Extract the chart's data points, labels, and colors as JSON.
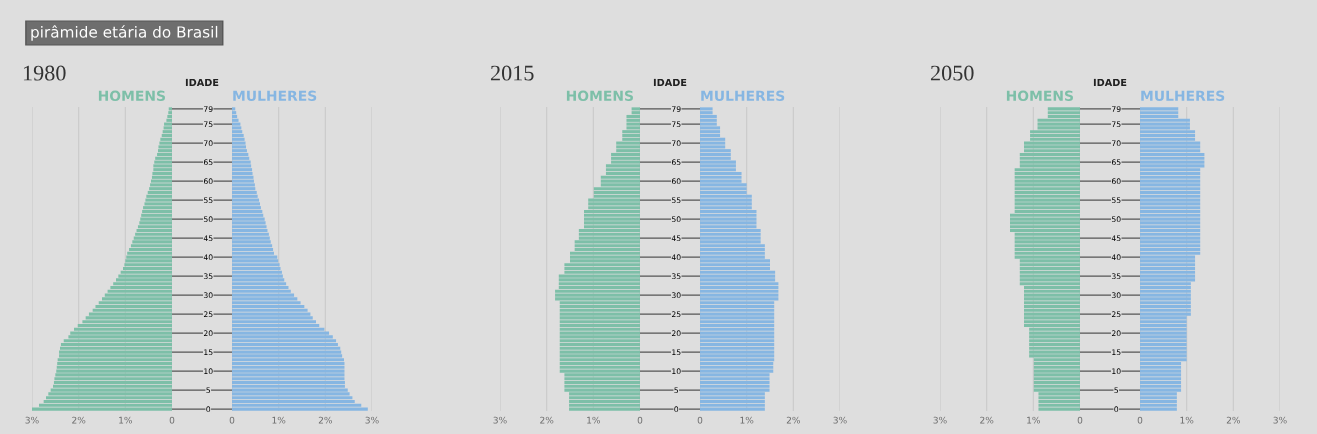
{
  "chart_data": [
    {
      "type": "bar",
      "orientation": "horizontal",
      "title": "1980",
      "subtitle": "HOMENS",
      "annotations": [
        "pirâmide etária do Brasil"
      ],
      "tick_labels": "x",
      "grid": "x",
      "categories": [
        "79",
        null,
        null,
        null,
        "75",
        null,
        null,
        null,
        null,
        "70",
        null,
        null,
        null,
        null,
        "65",
        null,
        null,
        null,
        null,
        "60",
        null,
        null,
        null,
        null,
        "55",
        null,
        null,
        null,
        null,
        "50",
        null,
        null,
        null,
        null,
        "45",
        null,
        null,
        null,
        null,
        "40",
        null,
        null,
        null,
        null,
        "35",
        null,
        null,
        null,
        null,
        "30",
        null,
        null,
        null,
        null,
        "25",
        null,
        null,
        null,
        null,
        "20",
        null,
        null,
        null,
        null,
        "15",
        null,
        null,
        null,
        null,
        "10",
        null,
        null,
        null,
        null,
        "5",
        null,
        null,
        null,
        null,
        "0"
      ],
      "xlim": [
        3,
        0
      ],
      "xticks": [
        {
          "value": 3,
          "label": "3%"
        },
        {
          "value": 2,
          "label": "2%"
        },
        {
          "value": 1,
          "label": "1%"
        },
        0
      ],
      "series": [
        {
          "color": "#7dbfa8",
          "values": [
            0.07,
            0.08,
            0.1,
            0.12,
            0.17,
            0.18,
            0.2,
            0.22,
            0.25,
            0.27,
            0.29,
            0.3,
            0.32,
            0.36,
            0.38,
            0.4,
            0.4,
            0.42,
            0.43,
            0.45,
            0.47,
            0.49,
            0.52,
            0.55,
            0.57,
            0.59,
            0.62,
            0.64,
            0.66,
            0.68,
            0.7,
            0.73,
            0.76,
            0.79,
            0.82,
            0.85,
            0.88,
            0.92,
            0.96,
            0.98,
            1.0,
            1.02,
            1.05,
            1.1,
            1.15,
            1.2,
            1.26,
            1.32,
            1.38,
            1.44,
            1.5,
            1.57,
            1.64,
            1.7,
            1.78,
            1.85,
            1.92,
            2.02,
            2.1,
            2.18,
            2.22,
            2.32,
            2.38,
            2.4,
            2.42,
            2.42,
            2.45,
            2.46,
            2.47,
            2.48,
            2.5,
            2.52,
            2.53,
            2.55,
            2.6,
            2.65,
            2.7,
            2.75,
            2.85,
            3.0
          ]
        }
      ]
    },
    {
      "type": "bar",
      "orientation": "horizontal",
      "subtitle": "MULHERES",
      "ylabel": "IDADE",
      "grid": "x",
      "categories": [
        "79",
        null,
        null,
        null,
        "75",
        null,
        null,
        null,
        null,
        "70",
        null,
        null,
        null,
        null,
        "65",
        null,
        null,
        null,
        null,
        "60",
        null,
        null,
        null,
        null,
        "55",
        null,
        null,
        null,
        null,
        "50",
        null,
        null,
        null,
        null,
        "45",
        null,
        null,
        null,
        null,
        "40",
        null,
        null,
        null,
        null,
        "35",
        null,
        null,
        null,
        null,
        "30",
        null,
        null,
        null,
        null,
        "25",
        null,
        null,
        null,
        null,
        "20",
        null,
        null,
        null,
        null,
        "15",
        null,
        null,
        null,
        null,
        "10",
        null,
        null,
        null,
        null,
        "5",
        null,
        null,
        null,
        null,
        "0"
      ],
      "xlim": [
        0,
        3
      ],
      "xticks": [
        0,
        {
          "value": 1,
          "label": "1%"
        },
        {
          "value": 2,
          "label": "2%"
        },
        {
          "value": 3,
          "label": "3%"
        }
      ],
      "series": [
        {
          "color": "#86b6e2",
          "values": [
            0.07,
            0.09,
            0.11,
            0.14,
            0.18,
            0.2,
            0.22,
            0.25,
            0.27,
            0.29,
            0.3,
            0.32,
            0.35,
            0.37,
            0.4,
            0.41,
            0.43,
            0.44,
            0.46,
            0.47,
            0.49,
            0.5,
            0.53,
            0.55,
            0.58,
            0.6,
            0.62,
            0.65,
            0.67,
            0.7,
            0.72,
            0.74,
            0.76,
            0.79,
            0.81,
            0.83,
            0.86,
            0.88,
            0.9,
            0.97,
            0.99,
            1.02,
            1.04,
            1.07,
            1.09,
            1.12,
            1.16,
            1.21,
            1.26,
            1.33,
            1.4,
            1.47,
            1.55,
            1.62,
            1.68,
            1.73,
            1.8,
            1.87,
            1.98,
            2.08,
            2.16,
            2.23,
            2.27,
            2.32,
            2.34,
            2.36,
            2.4,
            2.41,
            2.41,
            2.41,
            2.41,
            2.41,
            2.42,
            2.42,
            2.48,
            2.52,
            2.58,
            2.63,
            2.77,
            2.91
          ]
        }
      ]
    },
    {
      "type": "bar",
      "orientation": "horizontal",
      "title": "2015",
      "subtitle": "HOMENS",
      "tick_labels": "x",
      "grid": "x",
      "categories": [
        "79",
        null,
        null,
        null,
        "75",
        null,
        null,
        null,
        null,
        "70",
        null,
        null,
        null,
        null,
        "65",
        null,
        null,
        null,
        null,
        "60",
        null,
        null,
        null,
        null,
        "55",
        null,
        null,
        null,
        null,
        "50",
        null,
        null,
        null,
        null,
        "45",
        null,
        null,
        null,
        null,
        "40",
        null,
        null,
        null,
        null,
        "35",
        null,
        null,
        null,
        null,
        "30",
        null,
        null,
        null,
        null,
        "25",
        null,
        null,
        null,
        null,
        "20",
        null,
        null,
        null,
        null,
        "15",
        null,
        null,
        null,
        null,
        "10",
        null,
        null,
        null,
        null,
        "5",
        null,
        null,
        null,
        null,
        "0"
      ],
      "xlim": [
        3,
        0
      ],
      "xticks": [
        {
          "value": 3,
          "label": "3%"
        },
        {
          "value": 2,
          "label": "2%"
        },
        {
          "value": 1,
          "label": "1%"
        },
        0
      ],
      "series": [
        {
          "color": "#7dbfa8",
          "values": [
            0.18,
            0.18,
            0.29,
            0.29,
            0.29,
            0.29,
            0.38,
            0.38,
            0.38,
            0.51,
            0.51,
            0.51,
            0.62,
            0.62,
            0.62,
            0.73,
            0.73,
            0.73,
            0.84,
            0.84,
            0.84,
            0.99,
            0.99,
            0.99,
            1.11,
            1.11,
            1.11,
            1.2,
            1.2,
            1.2,
            1.2,
            1.2,
            1.31,
            1.31,
            1.31,
            1.4,
            1.4,
            1.4,
            1.5,
            1.5,
            1.5,
            1.62,
            1.62,
            1.62,
            1.74,
            1.74,
            1.74,
            1.74,
            1.82,
            1.82,
            1.82,
            1.72,
            1.72,
            1.72,
            1.72,
            1.72,
            1.72,
            1.72,
            1.72,
            1.72,
            1.72,
            1.72,
            1.72,
            1.72,
            1.72,
            1.72,
            1.72,
            1.72,
            1.72,
            1.72,
            1.62,
            1.62,
            1.62,
            1.62,
            1.62,
            1.52,
            1.52,
            1.52,
            1.52,
            1.52
          ]
        }
      ]
    },
    {
      "type": "bar",
      "orientation": "horizontal",
      "subtitle": "MULHERES",
      "ylabel": "IDADE",
      "grid": "x",
      "categories": [
        "79",
        null,
        null,
        null,
        "75",
        null,
        null,
        null,
        null,
        "70",
        null,
        null,
        null,
        null,
        "65",
        null,
        null,
        null,
        null,
        "60",
        null,
        null,
        null,
        null,
        "55",
        null,
        null,
        null,
        null,
        "50",
        null,
        null,
        null,
        null,
        "45",
        null,
        null,
        null,
        null,
        "40",
        null,
        null,
        null,
        null,
        "35",
        null,
        null,
        null,
        null,
        "30",
        null,
        null,
        null,
        null,
        "25",
        null,
        null,
        null,
        null,
        "20",
        null,
        null,
        null,
        null,
        "15",
        null,
        null,
        null,
        null,
        "10",
        null,
        null,
        null,
        null,
        "5",
        null,
        null,
        null,
        null,
        "0"
      ],
      "xlim": [
        0,
        3
      ],
      "xticks": [
        0,
        {
          "value": 1,
          "label": "1%"
        },
        {
          "value": 2,
          "label": "2%"
        },
        {
          "value": 3,
          "label": "3%"
        }
      ],
      "series": [
        {
          "color": "#86b6e2",
          "values": [
            0.27,
            0.27,
            0.36,
            0.36,
            0.36,
            0.43,
            0.43,
            0.43,
            0.54,
            0.54,
            0.54,
            0.66,
            0.66,
            0.66,
            0.77,
            0.77,
            0.77,
            0.89,
            0.89,
            0.89,
            1.0,
            1.0,
            1.0,
            1.11,
            1.11,
            1.11,
            1.11,
            1.21,
            1.21,
            1.21,
            1.21,
            1.21,
            1.3,
            1.3,
            1.3,
            1.3,
            1.39,
            1.39,
            1.39,
            1.39,
            1.5,
            1.5,
            1.5,
            1.61,
            1.61,
            1.61,
            1.68,
            1.68,
            1.68,
            1.68,
            1.68,
            1.59,
            1.59,
            1.59,
            1.59,
            1.59,
            1.59,
            1.59,
            1.59,
            1.59,
            1.59,
            1.59,
            1.59,
            1.59,
            1.59,
            1.59,
            1.59,
            1.57,
            1.57,
            1.57,
            1.49,
            1.49,
            1.49,
            1.49,
            1.49,
            1.39,
            1.39,
            1.39,
            1.39,
            1.39
          ]
        }
      ]
    },
    {
      "type": "bar",
      "orientation": "horizontal",
      "title": "2050",
      "subtitle": "HOMENS",
      "tick_labels": "x",
      "grid": "x",
      "categories": [
        "79",
        null,
        null,
        null,
        "75",
        null,
        null,
        null,
        null,
        "70",
        null,
        null,
        null,
        null,
        "65",
        null,
        null,
        null,
        null,
        "60",
        null,
        null,
        null,
        null,
        "55",
        null,
        null,
        null,
        null,
        "50",
        null,
        null,
        null,
        null,
        "45",
        null,
        null,
        null,
        null,
        "40",
        null,
        null,
        null,
        null,
        "35",
        null,
        null,
        null,
        null,
        "30",
        null,
        null,
        null,
        null,
        "25",
        null,
        null,
        null,
        null,
        "20",
        null,
        null,
        null,
        null,
        "15",
        null,
        null,
        null,
        null,
        "10",
        null,
        null,
        null,
        null,
        "5",
        null,
        null,
        null,
        null,
        "0"
      ],
      "xlim": [
        3,
        0
      ],
      "xticks": [
        {
          "value": 3,
          "label": "3%"
        },
        {
          "value": 2,
          "label": "2%"
        },
        {
          "value": 1,
          "label": "1%"
        },
        0
      ],
      "series": [
        {
          "color": "#7dbfa8",
          "values": [
            0.69,
            0.69,
            0.69,
            0.91,
            0.91,
            0.91,
            1.07,
            1.07,
            1.07,
            1.2,
            1.2,
            1.2,
            1.29,
            1.29,
            1.29,
            1.29,
            1.4,
            1.4,
            1.4,
            1.4,
            1.4,
            1.4,
            1.4,
            1.4,
            1.4,
            1.4,
            1.4,
            1.4,
            1.5,
            1.5,
            1.5,
            1.5,
            1.5,
            1.4,
            1.4,
            1.4,
            1.4,
            1.4,
            1.4,
            1.4,
            1.29,
            1.29,
            1.29,
            1.29,
            1.29,
            1.29,
            1.29,
            1.2,
            1.2,
            1.2,
            1.2,
            1.2,
            1.2,
            1.2,
            1.2,
            1.2,
            1.2,
            1.2,
            1.09,
            1.09,
            1.09,
            1.09,
            1.09,
            1.09,
            1.09,
            1.09,
            0.99,
            0.99,
            0.99,
            0.99,
            0.99,
            0.99,
            0.99,
            0.99,
            0.99,
            0.89,
            0.89,
            0.89,
            0.89,
            0.89
          ]
        }
      ]
    },
    {
      "type": "bar",
      "orientation": "horizontal",
      "subtitle": "MULHERES",
      "ylabel": "IDADE",
      "grid": "x",
      "categories": [
        "79",
        null,
        null,
        null,
        "75",
        null,
        null,
        null,
        null,
        "70",
        null,
        null,
        null,
        null,
        "65",
        null,
        null,
        null,
        null,
        "60",
        null,
        null,
        null,
        null,
        "55",
        null,
        null,
        null,
        null,
        "50",
        null,
        null,
        null,
        null,
        "45",
        null,
        null,
        null,
        null,
        "40",
        null,
        null,
        null,
        null,
        "35",
        null,
        null,
        null,
        null,
        "30",
        null,
        null,
        null,
        null,
        "25",
        null,
        null,
        null,
        null,
        "20",
        null,
        null,
        null,
        null,
        "15",
        null,
        null,
        null,
        null,
        "10",
        null,
        null,
        null,
        null,
        "5",
        null,
        null,
        null,
        null,
        "0"
      ],
      "xlim": [
        0,
        3
      ],
      "xticks": [
        0,
        {
          "value": 1,
          "label": "1%"
        },
        {
          "value": 2,
          "label": "2%"
        },
        {
          "value": 3,
          "label": "3%"
        }
      ],
      "series": [
        {
          "color": "#86b6e2",
          "values": [
            0.82,
            0.82,
            0.82,
            1.07,
            1.07,
            1.07,
            1.18,
            1.18,
            1.18,
            1.29,
            1.29,
            1.29,
            1.38,
            1.38,
            1.38,
            1.38,
            1.29,
            1.29,
            1.29,
            1.29,
            1.29,
            1.29,
            1.29,
            1.29,
            1.29,
            1.29,
            1.29,
            1.29,
            1.29,
            1.29,
            1.29,
            1.29,
            1.29,
            1.29,
            1.29,
            1.29,
            1.29,
            1.29,
            1.29,
            1.18,
            1.18,
            1.18,
            1.18,
            1.18,
            1.18,
            1.18,
            1.09,
            1.09,
            1.09,
            1.09,
            1.09,
            1.09,
            1.09,
            1.09,
            1.09,
            1.0,
            1.0,
            1.0,
            1.0,
            1.0,
            1.0,
            1.0,
            1.0,
            1.0,
            1.0,
            1.0,
            1.0,
            0.88,
            0.88,
            0.88,
            0.88,
            0.88,
            0.88,
            0.88,
            0.88,
            0.79,
            0.79,
            0.79,
            0.79,
            0.79
          ]
        }
      ]
    }
  ]
}
